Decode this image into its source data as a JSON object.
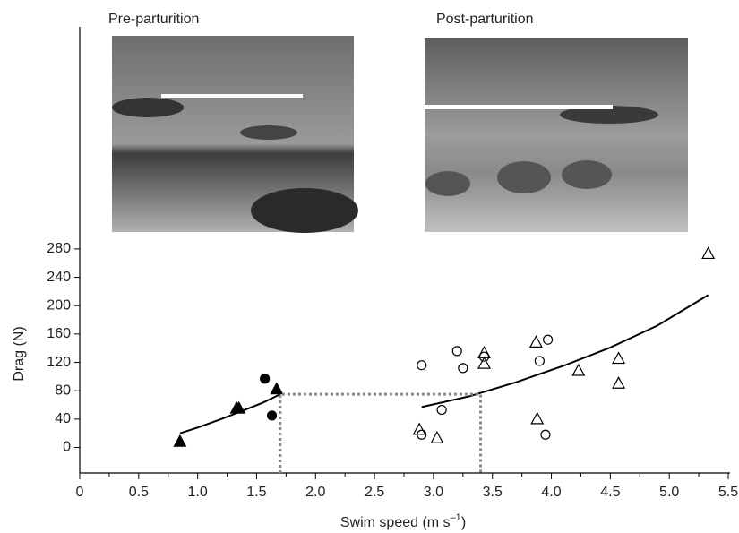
{
  "chart_data": {
    "type": "scatter",
    "panel_titles": [
      "Pre-parturition",
      "Post-parturition"
    ],
    "xlabel": [
      "Swim speed (m s",
      "–1",
      ")"
    ],
    "ylabel": "Drag (N)",
    "xlim": [
      0,
      5.5
    ],
    "ylim": [
      -36,
      290
    ],
    "xticks": [
      0,
      0.5,
      {
        "value": 1,
        "label": "1.0"
      },
      1.5,
      {
        "value": 2,
        "label": "2.0"
      },
      2.5,
      {
        "value": 3,
        "label": "3.0"
      },
      3.5,
      {
        "value": 4,
        "label": "4.0"
      },
      4.5,
      {
        "value": 5,
        "label": "5.0"
      },
      5.5
    ],
    "xminorticks": [
      0.25,
      0.75,
      1.25,
      1.75,
      2.25,
      2.75,
      3.25,
      3.75,
      4.25,
      4.75,
      5.25
    ],
    "yticks": [
      0,
      40,
      80,
      120,
      160,
      200,
      240,
      280
    ],
    "series": [
      {
        "mode": "markers",
        "marker": "triangle",
        "filled": true,
        "color": "#000000",
        "x": [
          0.85,
          1.33,
          1.35,
          1.67
        ],
        "values": [
          8,
          55,
          55,
          82
        ]
      },
      {
        "mode": "markers",
        "marker": "circle",
        "filled": true,
        "color": "#000000",
        "x": [
          1.57,
          1.63
        ],
        "values": [
          97,
          45
        ]
      },
      {
        "mode": "markers",
        "marker": "circle",
        "filled": false,
        "color": "#000000",
        "x": [
          2.9,
          2.9,
          3.07,
          3.2,
          3.25,
          3.43,
          3.9,
          3.97,
          3.95
        ],
        "values": [
          116,
          18,
          53,
          136,
          112,
          128,
          122,
          152,
          18
        ]
      },
      {
        "mode": "markers",
        "marker": "triangle",
        "filled": false,
        "color": "#000000",
        "x": [
          2.88,
          3.03,
          3.43,
          3.43,
          3.87,
          3.88,
          4.23,
          4.57,
          4.57,
          5.33
        ],
        "values": [
          25,
          13,
          133,
          118,
          148,
          40,
          108,
          125,
          90,
          273
        ]
      },
      {
        "mode": "line",
        "dashed": false,
        "color": "#000000",
        "x": [
          0.85,
          1.0,
          1.2,
          1.4,
          1.55,
          1.7
        ],
        "values": [
          20,
          28,
          40,
          53,
          63,
          75
        ]
      },
      {
        "mode": "line",
        "dashed": false,
        "color": "#000000",
        "x": [
          2.9,
          3.3,
          3.7,
          4.1,
          4.5,
          4.9,
          5.33
        ],
        "values": [
          57,
          72,
          92,
          115,
          141,
          172,
          215
        ]
      },
      {
        "mode": "line",
        "dashed": true,
        "color": "#888888",
        "x": [
          1.7,
          1.7,
          3.4,
          3.4
        ],
        "values": [
          -36,
          75,
          75,
          -36
        ]
      }
    ]
  }
}
